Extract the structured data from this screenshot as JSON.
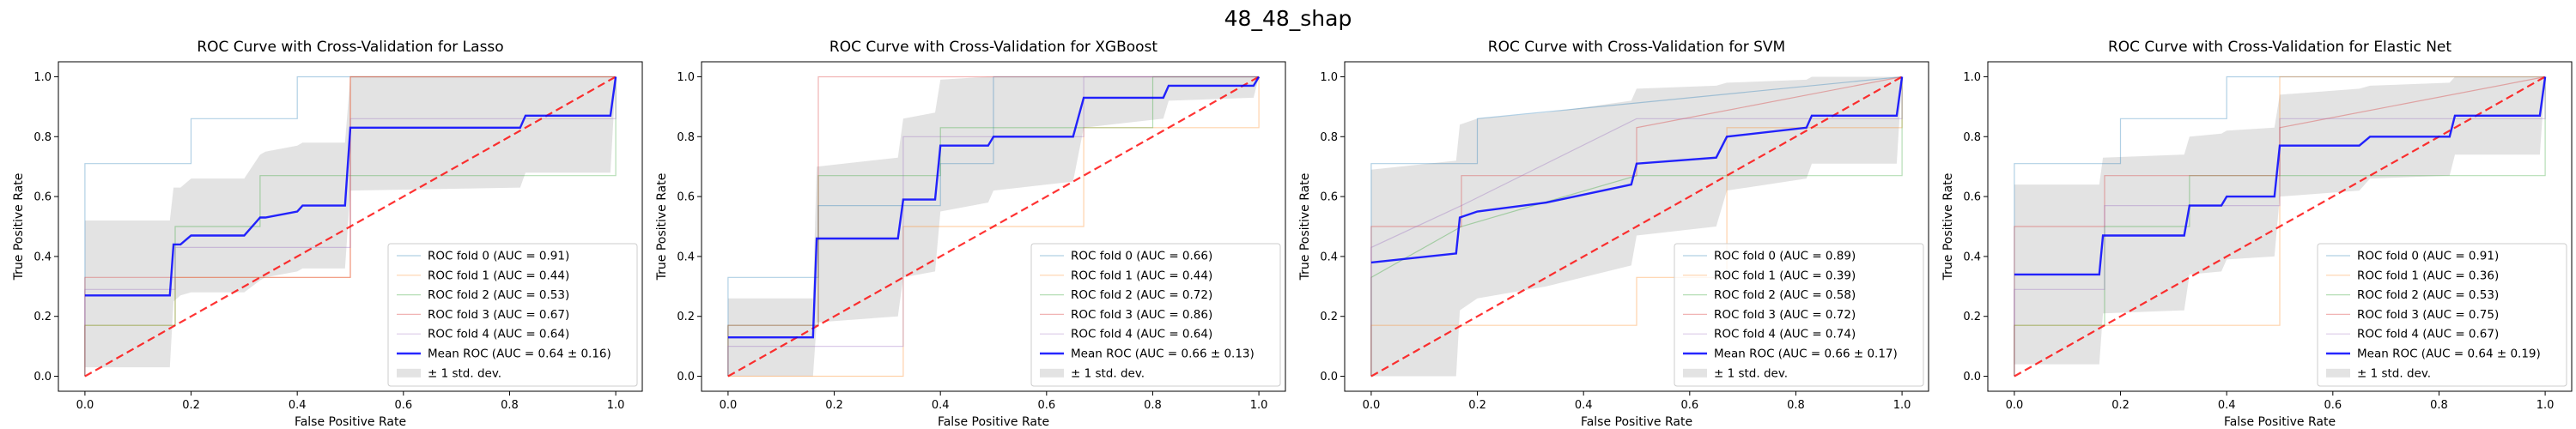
{
  "figure": {
    "suptitle": "48_48_shap"
  },
  "chart_data": [
    {
      "type": "line",
      "title": "ROC Curve with Cross-Validation for Lasso",
      "xlabel": "False Positive Rate",
      "ylabel": "True Positive Rate",
      "xlim": [
        -0.05,
        1.05
      ],
      "ylim": [
        -0.05,
        1.05
      ],
      "xticks": [
        "0.0",
        "0.2",
        "0.4",
        "0.6",
        "0.8",
        "1.0"
      ],
      "yticks": [
        "0.0",
        "0.2",
        "0.4",
        "0.6",
        "0.8",
        "1.0"
      ],
      "legend_position": "lower right",
      "folds": [
        {
          "name": "ROC fold 0 (AUC = 0.91)",
          "color": "#1f77b4",
          "x": [
            0,
            0,
            0.2,
            0.2,
            0.4,
            0.4,
            1.0
          ],
          "y": [
            0,
            0.71,
            0.71,
            0.86,
            0.86,
            1.0,
            1.0
          ]
        },
        {
          "name": "ROC fold 1 (AUC = 0.44)",
          "color": "#ff7f0e",
          "x": [
            0,
            0,
            0.17,
            0.17,
            0.5,
            0.5,
            1.0,
            1.0
          ],
          "y": [
            0,
            0.17,
            0.17,
            0.33,
            0.33,
            1.0,
            1.0,
            1.0
          ]
        },
        {
          "name": "ROC fold 2 (AUC = 0.53)",
          "color": "#2ca02c",
          "x": [
            0,
            0,
            0.17,
            0.17,
            0.33,
            0.33,
            0.67,
            0.67,
            1.0,
            1.0
          ],
          "y": [
            0,
            0.17,
            0.17,
            0.5,
            0.5,
            0.67,
            0.67,
            0.67,
            0.67,
            1.0
          ]
        },
        {
          "name": "ROC fold 3 (AUC = 0.67)",
          "color": "#d62728",
          "x": [
            0,
            0,
            0.33,
            0.33,
            0.5,
            0.5,
            1.0
          ],
          "y": [
            0,
            0.33,
            0.33,
            0.33,
            0.33,
            1.0,
            1.0
          ]
        },
        {
          "name": "ROC fold 4 (AUC = 0.64)",
          "color": "#9467bd",
          "x": [
            0,
            0,
            0.17,
            0.17,
            0.33,
            0.33,
            0.5,
            0.5,
            1.0,
            1.0
          ],
          "y": [
            0,
            0.29,
            0.29,
            0.43,
            0.43,
            0.43,
            0.43,
            0.86,
            0.86,
            1.0
          ]
        }
      ],
      "mean": {
        "name": "Mean ROC (AUC = 0.64 ± 0.16)",
        "color": "#0000ff",
        "x": [
          0,
          0.16,
          0.167,
          0.18,
          0.2,
          0.3,
          0.33,
          0.34,
          0.4,
          0.41,
          0.49,
          0.5,
          0.82,
          0.83,
          0.99,
          1.0
        ],
        "y": [
          0.27,
          0.27,
          0.44,
          0.44,
          0.47,
          0.47,
          0.53,
          0.53,
          0.55,
          0.57,
          0.57,
          0.83,
          0.83,
          0.87,
          0.87,
          1.0
        ],
        "lower": [
          0.03,
          0.03,
          0.25,
          0.27,
          0.28,
          0.28,
          0.32,
          0.33,
          0.35,
          0.36,
          0.36,
          0.62,
          0.63,
          0.68,
          0.68,
          1.0
        ],
        "upper": [
          0.52,
          0.52,
          0.63,
          0.63,
          0.66,
          0.66,
          0.74,
          0.75,
          0.77,
          0.78,
          0.78,
          1.0,
          1.0,
          1.0,
          1.0,
          1.0
        ]
      },
      "std_label": "± 1 std. dev."
    },
    {
      "type": "line",
      "title": "ROC Curve with Cross-Validation for XGBoost",
      "xlabel": "False Positive Rate",
      "ylabel": "True Positive Rate",
      "xlim": [
        -0.05,
        1.05
      ],
      "ylim": [
        -0.05,
        1.05
      ],
      "xticks": [
        "0.0",
        "0.2",
        "0.4",
        "0.6",
        "0.8",
        "1.0"
      ],
      "yticks": [
        "0.0",
        "0.2",
        "0.4",
        "0.6",
        "0.8",
        "1.0"
      ],
      "legend_position": "lower right",
      "folds": [
        {
          "name": "ROC fold 0 (AUC = 0.66)",
          "color": "#1f77b4",
          "x": [
            0,
            0,
            0.17,
            0.17,
            0.4,
            0.4,
            0.5,
            0.5,
            1.0
          ],
          "y": [
            0,
            0.33,
            0.33,
            0.57,
            0.57,
            0.71,
            0.71,
            1.0,
            1.0
          ]
        },
        {
          "name": "ROC fold 1 (AUC = 0.44)",
          "color": "#ff7f0e",
          "x": [
            0,
            0,
            0.33,
            0.33,
            0.67,
            0.67,
            1.0,
            1.0
          ],
          "y": [
            0,
            0,
            0,
            0.5,
            0.5,
            0.83,
            0.83,
            1.0
          ]
        },
        {
          "name": "ROC fold 2 (AUC = 0.72)",
          "color": "#2ca02c",
          "x": [
            0,
            0,
            0.17,
            0.17,
            0.4,
            0.4,
            0.8,
            0.8,
            1.0
          ],
          "y": [
            0,
            0.17,
            0.17,
            0.67,
            0.67,
            0.83,
            0.83,
            1.0,
            1.0
          ]
        },
        {
          "name": "ROC fold 3 (AUC = 0.86)",
          "color": "#d62728",
          "x": [
            0,
            0,
            0.17,
            0.17,
            1.0
          ],
          "y": [
            0,
            0.17,
            0.17,
            1.0,
            1.0
          ]
        },
        {
          "name": "ROC fold 4 (AUC = 0.64)",
          "color": "#9467bd",
          "x": [
            0,
            0,
            0.33,
            0.33,
            0.67,
            0.67,
            1.0
          ],
          "y": [
            0,
            0.1,
            0.1,
            0.8,
            0.8,
            1.0,
            1.0
          ]
        }
      ],
      "mean": {
        "name": "Mean ROC (AUC = 0.66 ± 0.13)",
        "color": "#0000ff",
        "x": [
          0,
          0.16,
          0.167,
          0.32,
          0.33,
          0.39,
          0.4,
          0.49,
          0.5,
          0.65,
          0.67,
          0.82,
          0.83,
          0.99,
          1.0
        ],
        "y": [
          0.13,
          0.13,
          0.46,
          0.46,
          0.59,
          0.59,
          0.77,
          0.77,
          0.8,
          0.8,
          0.93,
          0.93,
          0.97,
          0.97,
          1.0
        ],
        "lower": [
          0.0,
          0.0,
          0.18,
          0.2,
          0.33,
          0.35,
          0.55,
          0.58,
          0.62,
          0.65,
          0.83,
          0.86,
          0.92,
          0.93,
          1.0
        ],
        "upper": [
          0.26,
          0.26,
          0.7,
          0.73,
          0.86,
          0.88,
          0.99,
          1.0,
          1.0,
          1.0,
          1.0,
          1.0,
          1.0,
          1.0,
          1.0
        ]
      },
      "std_label": "± 1 std. dev."
    },
    {
      "type": "line",
      "title": "ROC Curve with Cross-Validation for SVM",
      "xlabel": "False Positive Rate",
      "ylabel": "True Positive Rate",
      "xlim": [
        -0.05,
        1.05
      ],
      "ylim": [
        -0.05,
        1.05
      ],
      "xticks": [
        "0.0",
        "0.2",
        "0.4",
        "0.6",
        "0.8",
        "1.0"
      ],
      "yticks": [
        "0.0",
        "0.2",
        "0.4",
        "0.6",
        "0.8",
        "1.0"
      ],
      "legend_position": "lower right",
      "folds": [
        {
          "name": "ROC fold 0 (AUC = 0.89)",
          "color": "#1f77b4",
          "x": [
            0,
            0,
            0.17,
            0.17,
            0.2,
            0.2,
            1.0
          ],
          "y": [
            0,
            0.71,
            0.71,
            0.71,
            0.71,
            0.86,
            1.0
          ]
        },
        {
          "name": "ROC fold 1 (AUC = 0.39)",
          "color": "#ff7f0e",
          "x": [
            0,
            0,
            0.5,
            0.5,
            0.67,
            0.67,
            1.0,
            1.0
          ],
          "y": [
            0,
            0.17,
            0.17,
            0.33,
            0.33,
            0.83,
            0.83,
            1.0
          ]
        },
        {
          "name": "ROC fold 2 (AUC = 0.58)",
          "color": "#2ca02c",
          "x": [
            0,
            0,
            0.17,
            0.5,
            0.67,
            1.0,
            1.0
          ],
          "y": [
            0,
            0.33,
            0.5,
            0.67,
            0.67,
            0.67,
            1.0
          ]
        },
        {
          "name": "ROC fold 3 (AUC = 0.72)",
          "color": "#d62728",
          "x": [
            0,
            0,
            0.17,
            0.17,
            0.5,
            0.5,
            1.0
          ],
          "y": [
            0,
            0.5,
            0.5,
            0.67,
            0.67,
            0.83,
            1.0
          ]
        },
        {
          "name": "ROC fold 4 (AUC = 0.74)",
          "color": "#9467bd",
          "x": [
            0,
            0,
            0.17,
            0.5,
            0.67,
            1.0,
            1.0
          ],
          "y": [
            0,
            0.43,
            0.57,
            0.86,
            0.86,
            0.86,
            1.0
          ]
        }
      ],
      "mean": {
        "name": "Mean ROC (AUC = 0.66 ± 0.17)",
        "color": "#0000ff",
        "x": [
          0,
          0.16,
          0.167,
          0.2,
          0.33,
          0.49,
          0.5,
          0.65,
          0.67,
          0.82,
          0.83,
          0.99,
          1.0
        ],
        "y": [
          0.38,
          0.41,
          0.53,
          0.55,
          0.58,
          0.64,
          0.71,
          0.73,
          0.8,
          0.83,
          0.87,
          0.87,
          1.0
        ],
        "lower": [
          0.0,
          0.0,
          0.22,
          0.26,
          0.3,
          0.37,
          0.47,
          0.5,
          0.62,
          0.66,
          0.71,
          0.71,
          1.0
        ],
        "upper": [
          0.69,
          0.72,
          0.84,
          0.86,
          0.88,
          0.92,
          0.96,
          0.97,
          0.98,
          0.99,
          1.0,
          1.0,
          1.0
        ]
      },
      "std_label": "± 1 std. dev."
    },
    {
      "type": "line",
      "title": "ROC Curve with Cross-Validation for Elastic Net",
      "xlabel": "False Positive Rate",
      "ylabel": "True Positive Rate",
      "xlim": [
        -0.05,
        1.05
      ],
      "ylim": [
        -0.05,
        1.05
      ],
      "xticks": [
        "0.0",
        "0.2",
        "0.4",
        "0.6",
        "0.8",
        "1.0"
      ],
      "yticks": [
        "0.0",
        "0.2",
        "0.4",
        "0.6",
        "0.8",
        "1.0"
      ],
      "legend_position": "lower right",
      "folds": [
        {
          "name": "ROC fold 0 (AUC = 0.91)",
          "color": "#1f77b4",
          "x": [
            0,
            0,
            0.2,
            0.2,
            0.4,
            0.4,
            1.0
          ],
          "y": [
            0,
            0.71,
            0.71,
            0.86,
            0.86,
            1.0,
            1.0
          ]
        },
        {
          "name": "ROC fold 1 (AUC = 0.36)",
          "color": "#ff7f0e",
          "x": [
            0,
            0,
            0.5,
            0.5,
            1.0,
            1.0
          ],
          "y": [
            0,
            0.17,
            0.17,
            1.0,
            1.0,
            1.0
          ]
        },
        {
          "name": "ROC fold 2 (AUC = 0.53)",
          "color": "#2ca02c",
          "x": [
            0,
            0,
            0.17,
            0.17,
            0.33,
            0.33,
            1.0,
            1.0
          ],
          "y": [
            0,
            0.17,
            0.17,
            0.5,
            0.5,
            0.67,
            0.67,
            1.0
          ]
        },
        {
          "name": "ROC fold 3 (AUC = 0.75)",
          "color": "#d62728",
          "x": [
            0,
            0,
            0.17,
            0.17,
            0.5,
            0.5,
            1.0
          ],
          "y": [
            0,
            0.5,
            0.5,
            0.67,
            0.67,
            0.83,
            1.0
          ]
        },
        {
          "name": "ROC fold 4 (AUC = 0.67)",
          "color": "#9467bd",
          "x": [
            0,
            0,
            0.17,
            0.17,
            0.5,
            0.5,
            1.0,
            1.0
          ],
          "y": [
            0,
            0.29,
            0.29,
            0.57,
            0.57,
            0.86,
            0.86,
            1.0
          ]
        }
      ],
      "mean": {
        "name": "Mean ROC (AUC = 0.64 ± 0.19)",
        "color": "#0000ff",
        "x": [
          0,
          0.16,
          0.167,
          0.32,
          0.33,
          0.39,
          0.4,
          0.49,
          0.5,
          0.65,
          0.67,
          0.82,
          0.83,
          0.99,
          1.0
        ],
        "y": [
          0.34,
          0.34,
          0.47,
          0.47,
          0.57,
          0.57,
          0.6,
          0.6,
          0.77,
          0.77,
          0.8,
          0.8,
          0.87,
          0.87,
          1.0
        ],
        "lower": [
          0.04,
          0.04,
          0.21,
          0.22,
          0.34,
          0.35,
          0.39,
          0.4,
          0.6,
          0.62,
          0.66,
          0.67,
          0.74,
          0.74,
          1.0
        ],
        "upper": [
          0.64,
          0.64,
          0.73,
          0.74,
          0.8,
          0.81,
          0.82,
          0.83,
          0.94,
          0.96,
          0.97,
          0.98,
          1.0,
          1.0,
          1.0
        ]
      },
      "std_label": "± 1 std. dev."
    }
  ],
  "style": {
    "chance_color": "#ff0000",
    "std_fill": "#cccccc",
    "axis_color": "#000000"
  }
}
